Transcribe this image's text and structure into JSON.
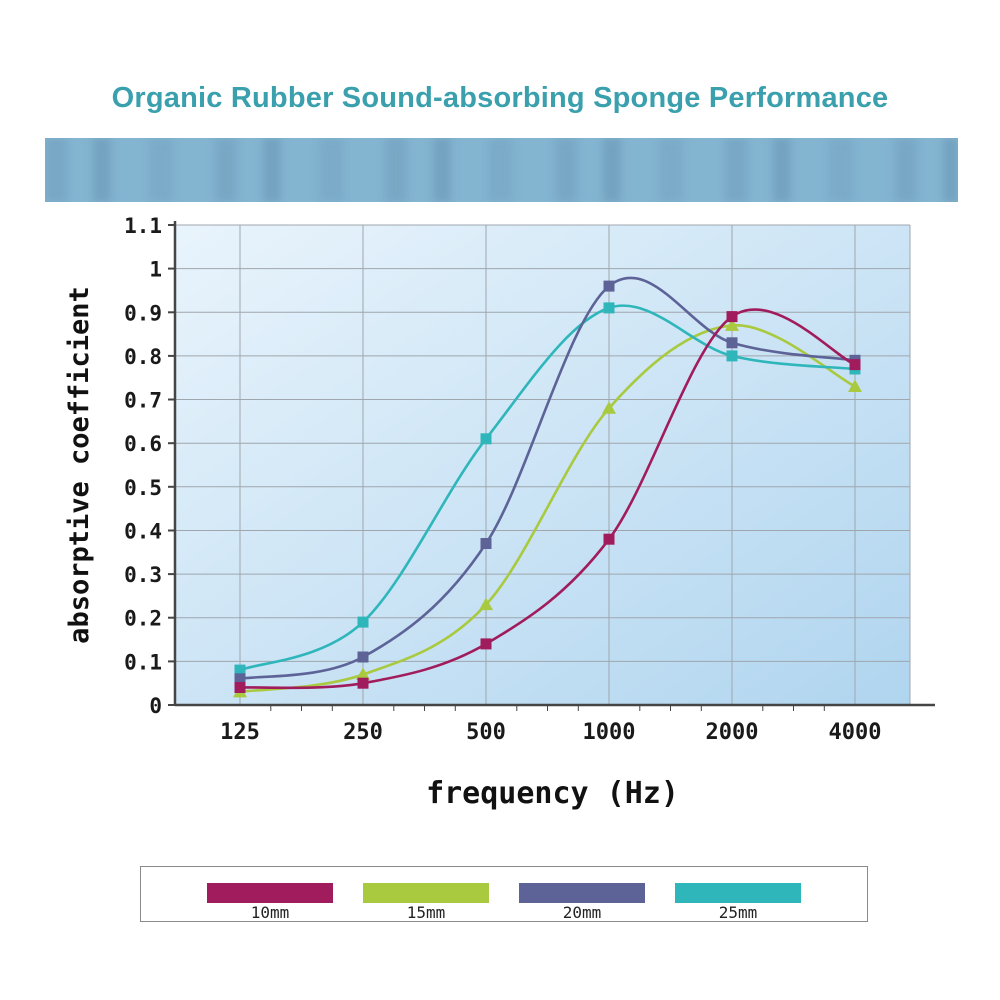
{
  "page": {
    "title": "Organic Rubber Sound-absorbing Sponge Performance",
    "title_color": "#3aa0ad",
    "banner_color": "#83b4d0"
  },
  "chart_data": {
    "type": "line",
    "x": [
      125,
      250,
      500,
      1000,
      2000,
      4000
    ],
    "x_scale": "log",
    "xlabel": "frequency (Hz)",
    "ylabel": "absorptive coefficient",
    "ylim": [
      0,
      1.1
    ],
    "ytick_step": 0.1,
    "yticks": [
      "0",
      "0.1",
      "0.2",
      "0.3",
      "0.4",
      "0.5",
      "0.6",
      "0.7",
      "0.8",
      "0.9",
      "1",
      "1.1"
    ],
    "grid": true,
    "plot_bg_top": "#e9f4fc",
    "plot_bg_bottom": "#b0d5ef",
    "grid_color": "#9fa6ad",
    "axis_color": "#454545",
    "legend_position": "bottom",
    "series": [
      {
        "name": "10mm",
        "color": "#a11c5c",
        "marker": "square",
        "values": [
          0.04,
          0.05,
          0.14,
          0.38,
          0.89,
          0.78
        ]
      },
      {
        "name": "15mm",
        "color": "#a9c93e",
        "marker": "triangle",
        "values": [
          0.03,
          0.07,
          0.23,
          0.68,
          0.87,
          0.73
        ]
      },
      {
        "name": "20mm",
        "color": "#5d6397",
        "marker": "square",
        "values": [
          0.06,
          0.11,
          0.37,
          0.96,
          0.83,
          0.79
        ]
      },
      {
        "name": "25mm",
        "color": "#2eb6ba",
        "marker": "square",
        "values": [
          0.08,
          0.19,
          0.61,
          0.91,
          0.8,
          0.77
        ]
      }
    ]
  }
}
